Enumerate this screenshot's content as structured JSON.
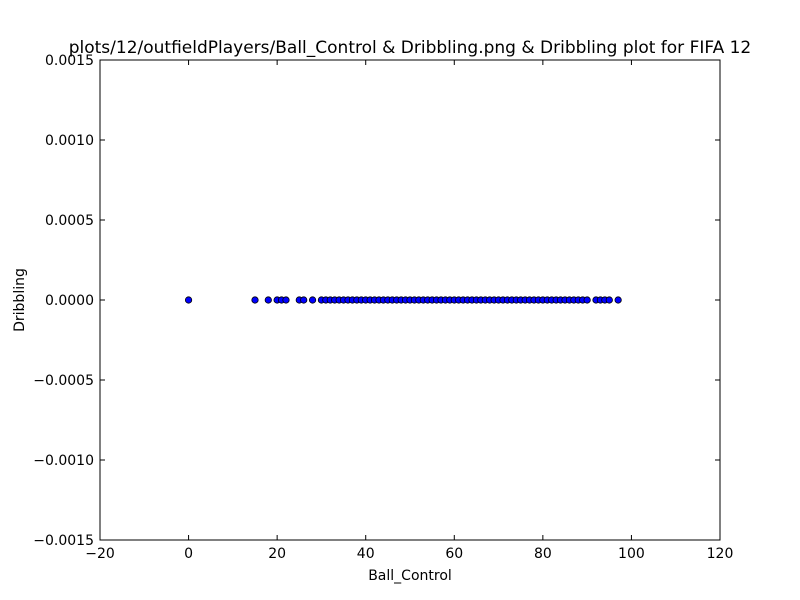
{
  "chart_data": {
    "type": "scatter",
    "title": "plots/12/outfieldPlayers/Ball_Control & Dribbling.png & Dribbling plot for FIFA 12",
    "xlabel": "Ball_Control",
    "ylabel": "Dribbling",
    "xlim": [
      -20,
      120
    ],
    "ylim": [
      -0.0015,
      0.0015
    ],
    "xticks": [
      -20,
      0,
      20,
      40,
      60,
      80,
      100,
      120
    ],
    "xtick_labels": [
      "−20",
      "0",
      "20",
      "40",
      "60",
      "80",
      "100",
      "120"
    ],
    "yticks": [
      0.0015,
      0.001,
      0.0005,
      0,
      -0.0005,
      -0.001,
      -0.0015
    ],
    "ytick_labels": [
      "0.0015",
      "0.0010",
      "0.0005",
      "0.0000",
      "−0.0005",
      "−0.0010",
      "−0.0015"
    ],
    "grid": false,
    "marker_color": "#0000ff",
    "x": [
      0,
      15,
      18,
      20,
      21,
      22,
      25,
      26,
      28,
      30,
      31,
      32,
      33,
      34,
      35,
      36,
      37,
      38,
      39,
      40,
      41,
      42,
      43,
      44,
      45,
      46,
      47,
      48,
      49,
      50,
      51,
      52,
      53,
      54,
      55,
      56,
      57,
      58,
      59,
      60,
      61,
      62,
      63,
      64,
      65,
      66,
      67,
      68,
      69,
      70,
      71,
      72,
      73,
      74,
      75,
      76,
      77,
      78,
      79,
      80,
      81,
      82,
      83,
      84,
      85,
      86,
      87,
      88,
      89,
      90,
      92,
      93,
      94,
      95,
      97
    ],
    "y": [
      0,
      0,
      0,
      0,
      0,
      0,
      0,
      0,
      0,
      0,
      0,
      0,
      0,
      0,
      0,
      0,
      0,
      0,
      0,
      0,
      0,
      0,
      0,
      0,
      0,
      0,
      0,
      0,
      0,
      0,
      0,
      0,
      0,
      0,
      0,
      0,
      0,
      0,
      0,
      0,
      0,
      0,
      0,
      0,
      0,
      0,
      0,
      0,
      0,
      0,
      0,
      0,
      0,
      0,
      0,
      0,
      0,
      0,
      0,
      0,
      0,
      0,
      0,
      0,
      0,
      0,
      0,
      0,
      0,
      0,
      0,
      0,
      0,
      0,
      0
    ]
  }
}
